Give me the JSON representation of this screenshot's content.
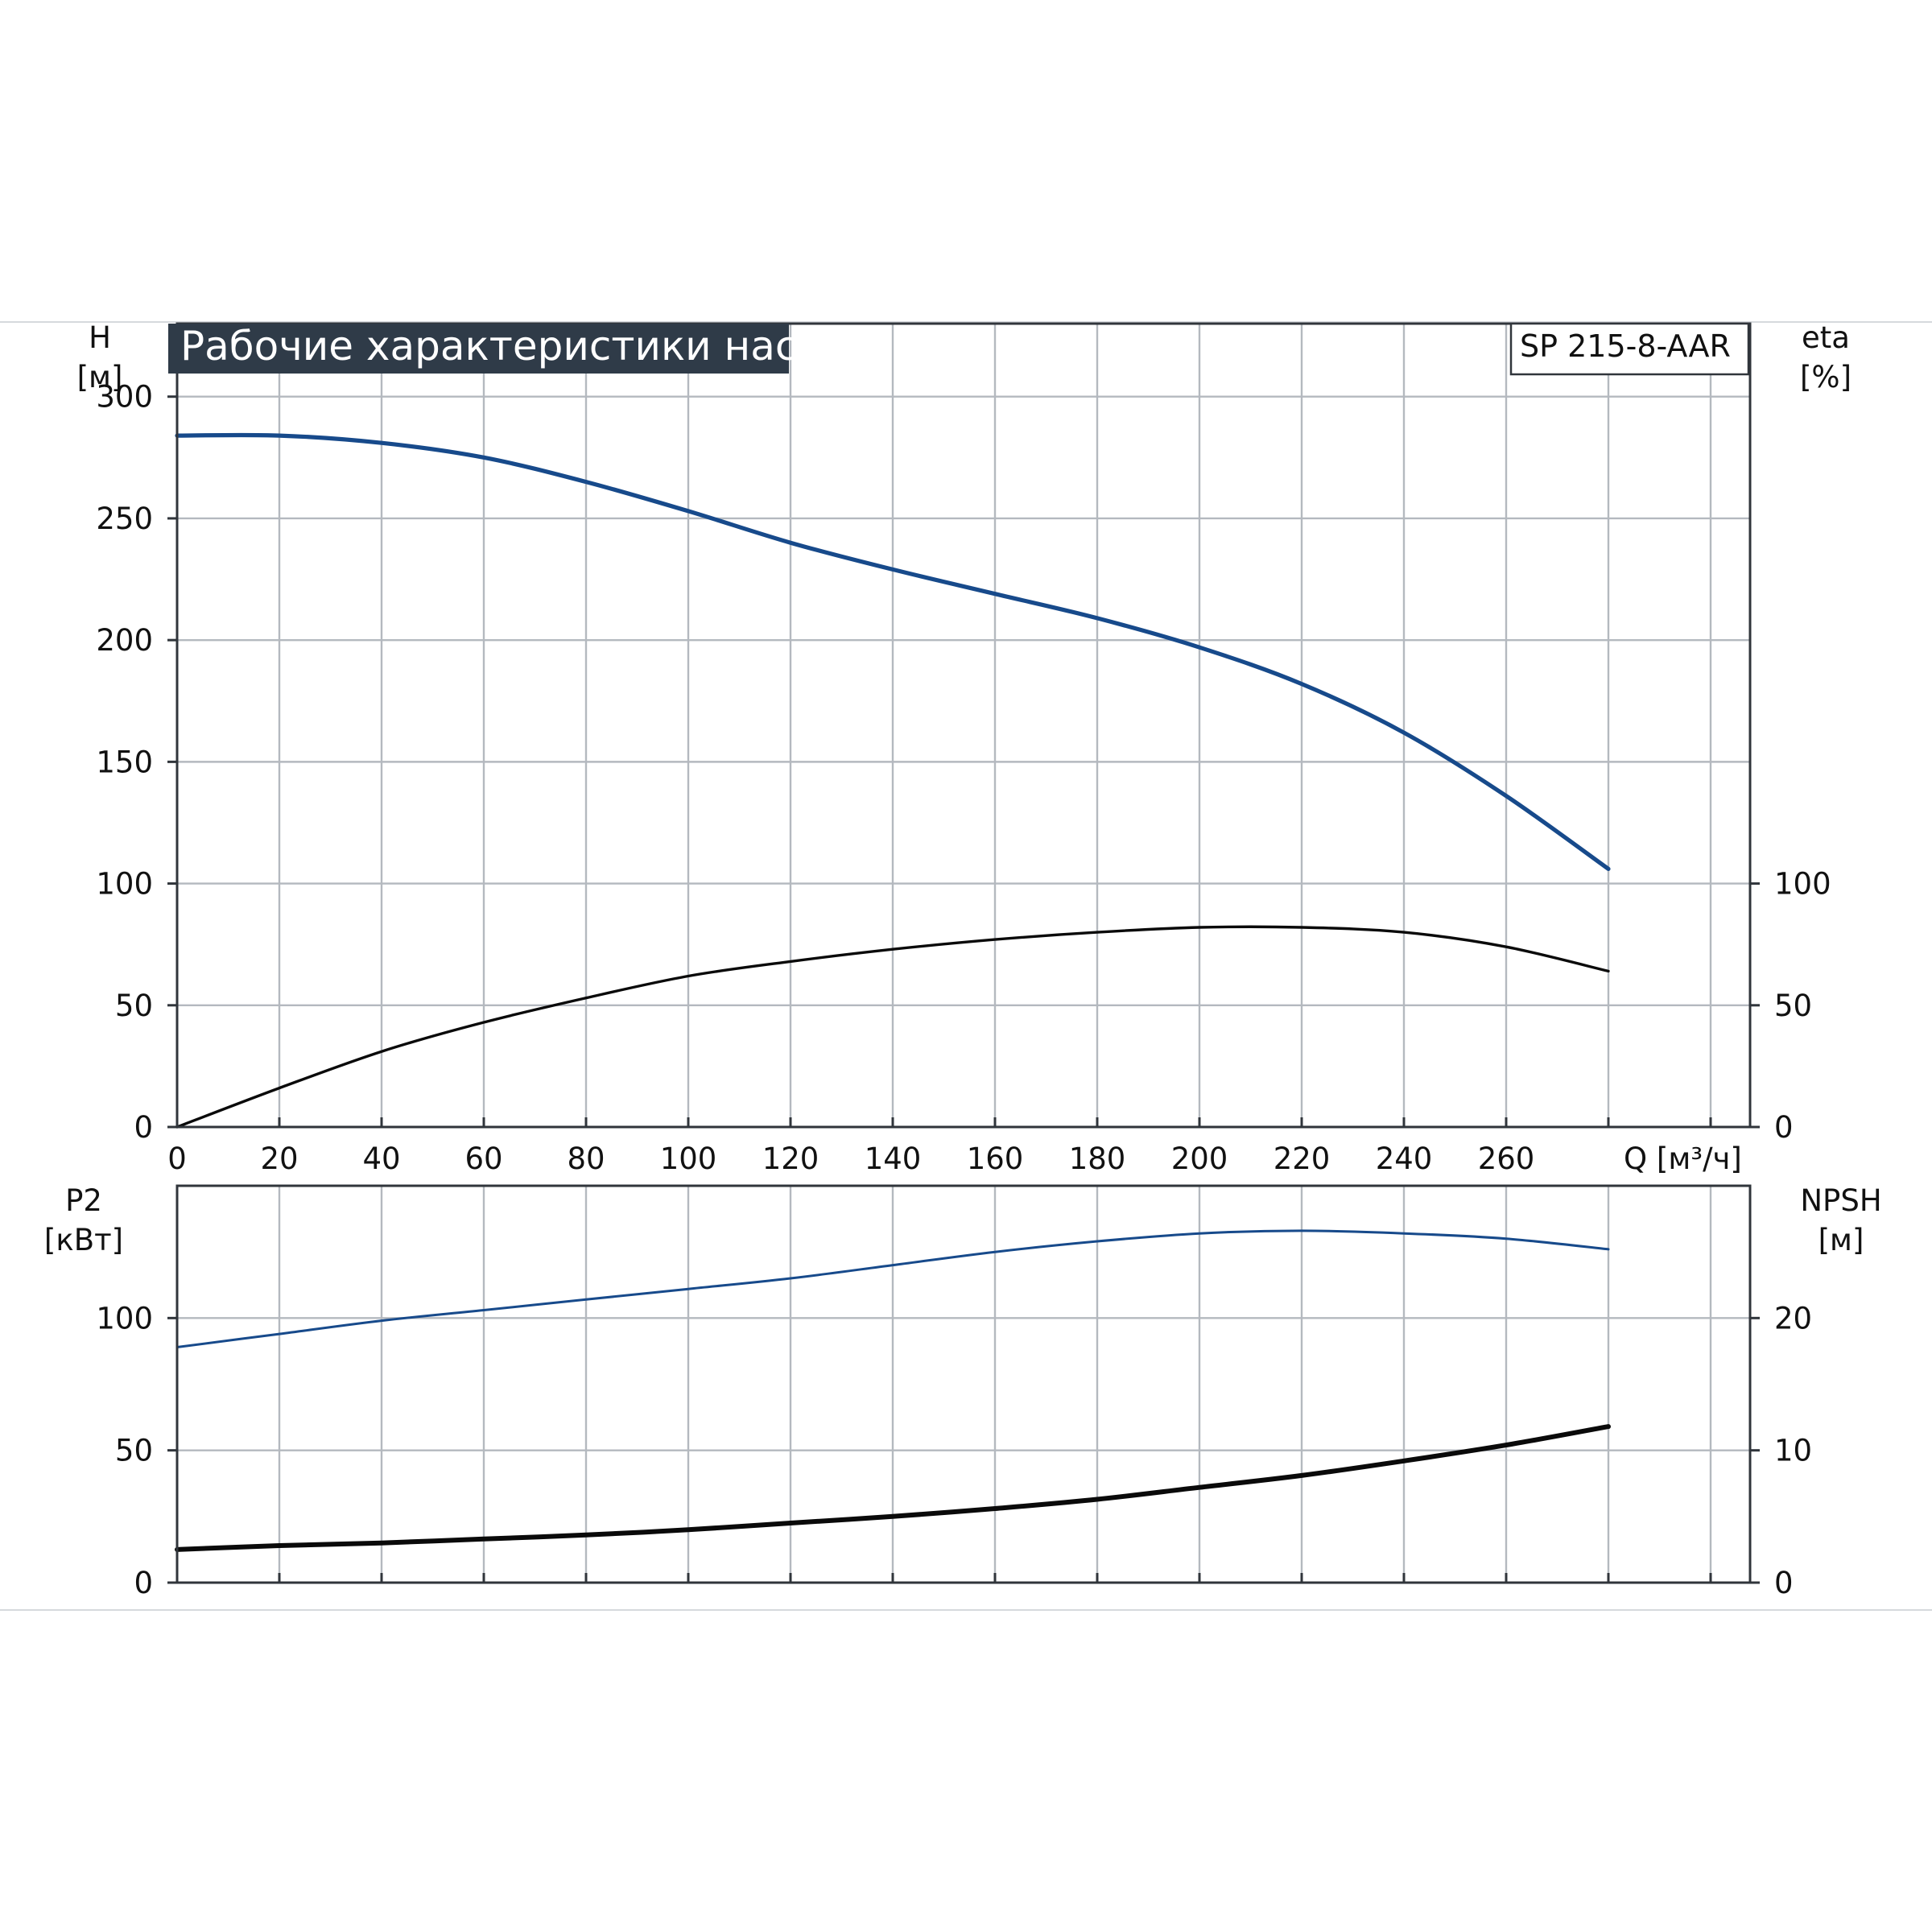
{
  "title": "Рабочие характеристики насоса",
  "model": "SP 215-8-AAR",
  "colors": {
    "blue": "#174a8b",
    "black": "#0a0a0a",
    "title_bg": "#2f3b48",
    "grid": "#b4b9bf",
    "frame": "#30353b"
  },
  "chart_data": [
    {
      "type": "line",
      "panel": "top",
      "x_label": "Q [м³/ч]",
      "xlim": [
        0,
        300
      ],
      "x_ticks": [
        0,
        20,
        40,
        60,
        80,
        100,
        120,
        140,
        160,
        180,
        200,
        220,
        240,
        260
      ],
      "left_axis": {
        "label_line1": "H",
        "label_line2": "[м]",
        "ylim": [
          0,
          330
        ],
        "ticks": [
          0,
          50,
          100,
          150,
          200,
          250,
          300
        ]
      },
      "right_axis": {
        "label_line1": "eta",
        "label_line2": "[%]",
        "ylim": [
          0,
          330
        ],
        "ticks": [
          0,
          50,
          100
        ]
      },
      "grid": true,
      "series": [
        {
          "name": "H",
          "axis": "left",
          "color": "#174a8b",
          "x": [
            0,
            20,
            40,
            60,
            80,
            100,
            120,
            140,
            160,
            180,
            200,
            220,
            240,
            260,
            280
          ],
          "y": [
            284,
            284,
            281,
            275,
            265,
            253,
            240,
            229,
            219,
            209,
            197,
            182,
            162,
            136,
            106
          ]
        },
        {
          "name": "eta",
          "axis": "right",
          "color": "#0a0a0a",
          "x": [
            0,
            20,
            40,
            60,
            80,
            100,
            120,
            140,
            160,
            180,
            200,
            220,
            240,
            260,
            280
          ],
          "y": [
            0,
            16,
            31,
            43,
            53,
            62,
            68,
            73,
            77,
            80,
            82,
            82,
            80,
            74,
            64
          ]
        }
      ]
    },
    {
      "type": "line",
      "panel": "bottom",
      "xlim": [
        0,
        300
      ],
      "left_axis": {
        "label_line1": "P2",
        "label_line2": "[кВт]",
        "ylim": [
          0,
          150
        ],
        "ticks": [
          0,
          50,
          100
        ]
      },
      "right_axis": {
        "label_line1": "NPSH",
        "label_line2": "[м]",
        "ylim": [
          0,
          30
        ],
        "ticks": [
          0,
          10,
          20
        ]
      },
      "grid": true,
      "series": [
        {
          "name": "P2",
          "axis": "left",
          "color": "#174a8b",
          "x": [
            0,
            20,
            40,
            60,
            80,
            100,
            120,
            140,
            160,
            180,
            200,
            220,
            240,
            260,
            280
          ],
          "y": [
            89,
            94,
            99,
            103,
            107,
            111,
            115,
            120,
            125,
            129,
            132,
            133,
            132,
            130,
            126
          ]
        },
        {
          "name": "NPSH",
          "axis": "right",
          "color": "#0a0a0a",
          "x": [
            0,
            20,
            40,
            60,
            80,
            100,
            120,
            140,
            160,
            180,
            200,
            220,
            240,
            260,
            280
          ],
          "y": [
            2.5,
            2.8,
            3.0,
            3.3,
            3.6,
            4.0,
            4.5,
            5.0,
            5.6,
            6.3,
            7.2,
            8.1,
            9.2,
            10.4,
            11.8
          ]
        }
      ]
    }
  ]
}
